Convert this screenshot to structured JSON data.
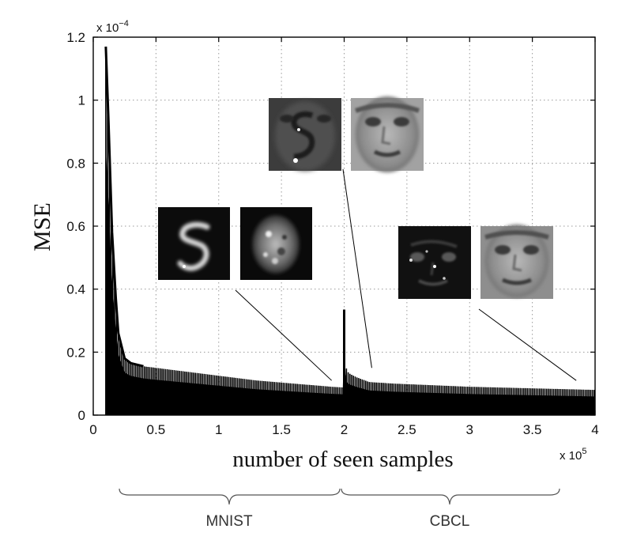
{
  "chart_data": {
    "type": "line",
    "title": "",
    "xlabel": "number of seen samples",
    "ylabel": "MSE",
    "x_multiplier_label": "x 10",
    "x_multiplier_exp": "5",
    "y_multiplier_label": "x 10",
    "y_multiplier_exp": "−4",
    "xlim": [
      0,
      4
    ],
    "ylim": [
      0,
      1.2
    ],
    "xticks": [
      0,
      0.5,
      1,
      1.5,
      2,
      2.5,
      3,
      3.5,
      4
    ],
    "xtick_labels": [
      "0",
      "0.5",
      "1",
      "1.5",
      "2",
      "2.5",
      "3",
      "3.5",
      "4"
    ],
    "yticks": [
      0,
      0.2,
      0.4,
      0.6,
      0.8,
      1.0,
      1.2
    ],
    "ytick_labels": [
      "0",
      "0.2",
      "0.4",
      "0.6",
      "0.8",
      "1",
      "1.2"
    ],
    "grid": true,
    "series": [
      {
        "upper_envelope": {
          "x": [
            0.1,
            0.12,
            0.15,
            0.18,
            0.2,
            0.25,
            0.3,
            0.4,
            0.5,
            0.7,
            1.0,
            1.3,
            1.6,
            1.9,
            1.99,
            2.0,
            2.01,
            2.02,
            2.05,
            2.1,
            2.2,
            2.4,
            2.7,
            3.0,
            3.5,
            4.0
          ],
          "y": [
            1.17,
            0.95,
            0.58,
            0.37,
            0.26,
            0.18,
            0.165,
            0.155,
            0.15,
            0.14,
            0.125,
            0.11,
            0.1,
            0.09,
            0.088,
            0.335,
            0.18,
            0.14,
            0.13,
            0.12,
            0.105,
            0.1,
            0.095,
            0.09,
            0.085,
            0.08
          ]
        },
        "lower_envelope": {
          "x": [
            0.1,
            0.12,
            0.15,
            0.2,
            0.25,
            0.3,
            0.5,
            1.0,
            1.5,
            1.99,
            2.0,
            2.01,
            2.1,
            2.5,
            3.0,
            3.5,
            4.0
          ],
          "y": [
            0.03,
            0.03,
            0.025,
            0.022,
            0.02,
            0.02,
            0.015,
            0.012,
            0.01,
            0.01,
            0.05,
            0.01,
            0.01,
            0.008,
            0.008,
            0.007,
            0.006
          ]
        }
      }
    ],
    "groups": [
      {
        "label": "MNIST",
        "x_range": [
          0,
          2
        ]
      },
      {
        "label": "CBCL",
        "x_range": [
          2,
          4
        ]
      }
    ],
    "insets": [
      {
        "images": [
          "mnist-digit-learned",
          "mnist-digit-face-mix"
        ],
        "pointer_x": 1.9,
        "pointer_y": 0.11
      },
      {
        "images": [
          "face-digit-mix",
          "face-learned"
        ],
        "pointer_x": 2.22,
        "pointer_y": 0.15
      },
      {
        "images": [
          "face-sparse-features",
          "face-final"
        ],
        "pointer_x": 3.85,
        "pointer_y": 0.11
      }
    ]
  }
}
